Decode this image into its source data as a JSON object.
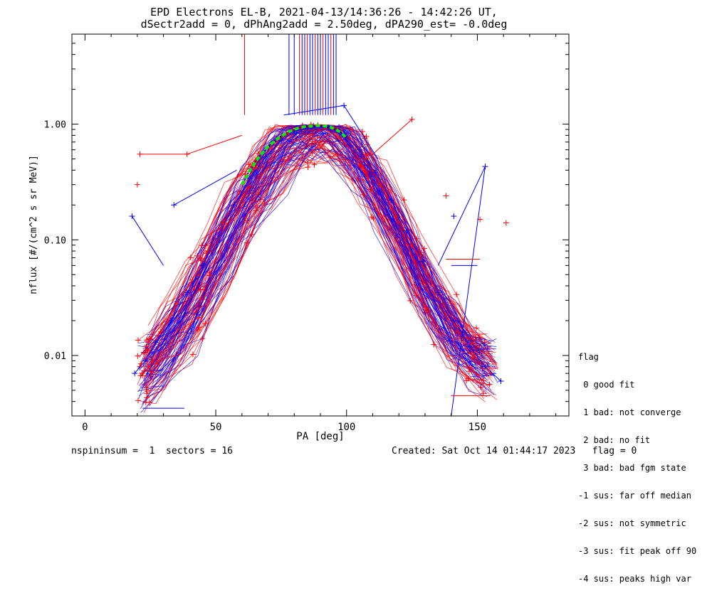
{
  "title_line1": "EPD Electrons EL-B, 2021-04-13/14:36:26 - 14:42:26 UT,",
  "title_line2": "dSectr2add = 0, dPhAng2add = 2.50deg, dPA290_est=  -0.0deg",
  "footer": {
    "left": "nspininsum =  1  sectors = 16",
    "right": "Created: Sat Oct 14 01:44:17 2023   flag = 0"
  },
  "flag_legend": {
    "heading": "flag",
    "items": [
      " 0 good fit",
      " 1 bad: not converge",
      " 2 bad: no fit",
      " 3 bad: bad fgm state",
      "-1 sus: far off median",
      "-2 sus: not symmetric",
      "-3 sus: fit peak off 90",
      "-4 sus: peaks high var"
    ]
  },
  "colors": {
    "series_a": "#ff0000",
    "series_b": "#0000ff",
    "fit": "#00ee00",
    "fit_dots": "#000000"
  },
  "chart_data": {
    "type": "line",
    "xlabel": "PA [deg]",
    "ylabel": "nflux [#/(cm^2 s sr MeV)]",
    "xlim": [
      -5,
      185
    ],
    "ylim": [
      0.003,
      6.0
    ],
    "yscale": "log",
    "x_ticks": [
      0,
      50,
      100,
      150
    ],
    "x_tick_labels": [
      "0",
      "50",
      "100",
      "150"
    ],
    "y_ticks": [
      0.01,
      0.1,
      1.0
    ],
    "y_tick_labels": [
      "0.01",
      "0.10",
      "1.00"
    ],
    "grid": false,
    "fit_curve": {
      "x": [
        60,
        62,
        64,
        66,
        68,
        70,
        72,
        74,
        76,
        78,
        80,
        82,
        84,
        86,
        88,
        90,
        92,
        94,
        96,
        98,
        100
      ],
      "y": [
        0.3,
        0.36,
        0.43,
        0.5,
        0.57,
        0.64,
        0.7,
        0.76,
        0.81,
        0.86,
        0.9,
        0.93,
        0.95,
        0.96,
        0.97,
        0.97,
        0.96,
        0.94,
        0.9,
        0.84,
        0.76
      ]
    },
    "envelope": {
      "x": [
        18,
        25,
        30,
        40,
        50,
        60,
        70,
        78,
        85,
        90,
        97,
        105,
        115,
        125,
        135,
        145,
        155,
        160
      ],
      "y": [
        0.006,
        0.008,
        0.012,
        0.025,
        0.07,
        0.2,
        0.45,
        0.75,
        0.88,
        0.9,
        0.85,
        0.5,
        0.2,
        0.07,
        0.025,
        0.012,
        0.008,
        0.007
      ]
    },
    "series": [
      {
        "color": "red",
        "x": [
          21,
          24,
          29,
          35,
          41,
          47,
          53,
          59,
          65,
          71,
          77,
          83,
          89,
          95,
          101,
          107,
          113,
          119,
          125,
          131,
          137,
          143,
          149,
          155
        ],
        "y": [
          0.008,
          0.011,
          0.016,
          0.028,
          0.045,
          0.08,
          0.14,
          0.26,
          0.42,
          0.62,
          0.82,
          0.95,
          0.98,
          0.93,
          0.75,
          0.5,
          0.3,
          0.16,
          0.09,
          0.05,
          0.028,
          0.016,
          0.01,
          0.007
        ]
      },
      {
        "color": "blue",
        "x": [
          19,
          23,
          27,
          33,
          39,
          45,
          51,
          57,
          63,
          69,
          75,
          81,
          87,
          93,
          99,
          105,
          111,
          117,
          123,
          129,
          135,
          141,
          147,
          153,
          159
        ],
        "y": [
          0.007,
          0.009,
          0.013,
          0.02,
          0.035,
          0.06,
          0.11,
          0.2,
          0.34,
          0.52,
          0.72,
          0.88,
          0.95,
          0.94,
          0.82,
          0.6,
          0.38,
          0.22,
          0.12,
          0.065,
          0.035,
          0.02,
          0.012,
          0.008,
          0.006
        ]
      }
    ],
    "outliers": [
      {
        "color": "red",
        "x": 21,
        "y": 0.55
      },
      {
        "color": "red",
        "x": 39,
        "y": 0.55
      },
      {
        "color": "red",
        "x": 20,
        "y": 0.3
      },
      {
        "color": "blue",
        "x": 18,
        "y": 0.16
      },
      {
        "color": "blue",
        "x": 34,
        "y": 0.2
      },
      {
        "color": "red",
        "x": 125,
        "y": 1.1
      },
      {
        "color": "blue",
        "x": 99,
        "y": 1.45
      },
      {
        "color": "blue",
        "x": 153,
        "y": 0.43
      },
      {
        "color": "red",
        "x": 138,
        "y": 0.24
      },
      {
        "color": "red",
        "x": 161,
        "y": 0.14
      },
      {
        "color": "red",
        "x": 151,
        "y": 0.15
      },
      {
        "color": "blue",
        "x": 141,
        "y": 0.16
      }
    ],
    "spikes_x": [
      61,
      78,
      80,
      82,
      83,
      84,
      85,
      86,
      87,
      88,
      89,
      90,
      91,
      92,
      93,
      94,
      95,
      96
    ]
  }
}
